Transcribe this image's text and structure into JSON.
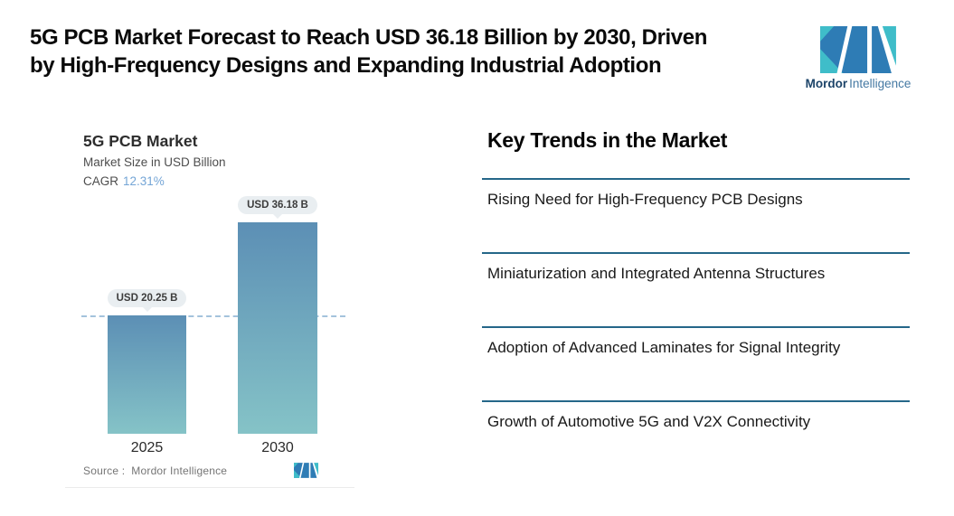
{
  "header": {
    "title_line1": "5G PCB Market Forecast to Reach USD 36.18 Billion by 2030, Driven",
    "title_line2": "by High-Frequency Designs and Expanding Industrial Adoption"
  },
  "brand": {
    "wordmark_bold": "Mordor",
    "wordmark_light": "Intelligence"
  },
  "chart": {
    "title": "5G PCB Market",
    "subtitle": "Market Size in USD Billion",
    "cagr_label": "CAGR",
    "cagr_value": "12.31%",
    "source_label": "Source :",
    "source_value": "Mordor Intelligence"
  },
  "chart_data": {
    "type": "bar",
    "title": "5G PCB Market",
    "subtitle": "Market Size in USD Billion",
    "unit": "USD Billion",
    "cagr_pct": 12.31,
    "categories": [
      "2025",
      "2030"
    ],
    "values": [
      20.25,
      36.18
    ],
    "value_labels": [
      "USD 20.25 B",
      "USD 36.18 B"
    ],
    "reference_line_value": 20.25,
    "ylim": [
      0,
      40
    ],
    "grid": false,
    "legend": false,
    "bar_gradient": [
      "#5c8fb5",
      "#85c3c7"
    ]
  },
  "trends": {
    "heading": "Key Trends in the Market",
    "items": [
      "Rising Need for High-Frequency PCB Designs",
      "Miniaturization and Integrated Antenna Structures",
      "Adoption of Advanced Laminates for Signal Integrity",
      "Growth of Automotive 5G and V2X Connectivity"
    ]
  },
  "colors": {
    "brand_teal": "#3fbdc9",
    "brand_blue": "#2e7cb5",
    "brand_navy": "#1c4469",
    "wordmark_light_blue": "#4579a3",
    "separator": "#256789",
    "cagr_value": "#74a5d6",
    "dashed_line": "#a4c3dc",
    "pill_bg": "#e9eef1"
  }
}
